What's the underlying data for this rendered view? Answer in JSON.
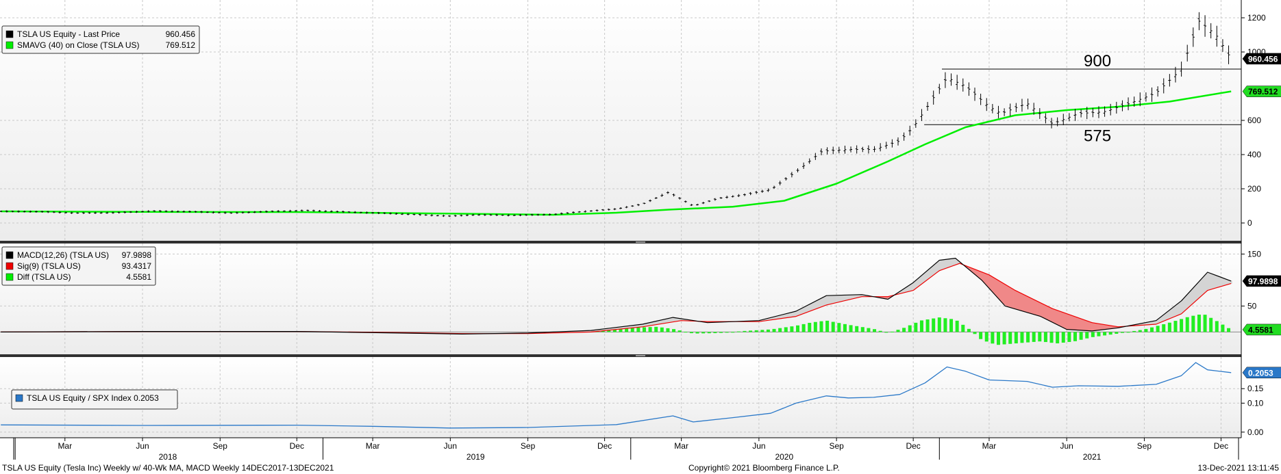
{
  "chart_data": [
    {
      "panel": "price",
      "type": "line",
      "ylim": [
        -80,
        1280
      ],
      "yticks": [
        0,
        200,
        400,
        600,
        1000,
        1200
      ],
      "legend": [
        {
          "label": "TSLA US Equity - Last Price",
          "value": "960.456",
          "color": "#000000"
        },
        {
          "label": "SMAVG (40)  on Close (TSLA US)",
          "value": "769.512",
          "color": "#00ee00"
        }
      ],
      "last_value_tags": [
        {
          "text": "960.456",
          "value": 960.456,
          "bg": "#000000",
          "fg": "#ffffff"
        },
        {
          "text": "769.512",
          "value": 769.512,
          "bg": "#22dd22",
          "fg": "#000000"
        }
      ],
      "annotations": [
        {
          "text": "900",
          "level": 900,
          "x_start": "2021-01-04"
        },
        {
          "text": "575",
          "level": 575,
          "x_start": "2020-12-14"
        }
      ],
      "series": [
        {
          "name": "TSLA US Equity - Last Price",
          "color": "#000000",
          "points": [
            [
              "2017-12-15",
              68
            ],
            [
              "2018-02-01",
              66
            ],
            [
              "2018-03-15",
              58
            ],
            [
              "2018-05-01",
              60
            ],
            [
              "2018-06-15",
              70
            ],
            [
              "2018-08-01",
              66
            ],
            [
              "2018-09-15",
              58
            ],
            [
              "2018-11-01",
              68
            ],
            [
              "2018-12-15",
              73
            ],
            [
              "2019-02-01",
              64
            ],
            [
              "2019-03-15",
              57
            ],
            [
              "2019-05-01",
              47
            ],
            [
              "2019-06-01",
              40
            ],
            [
              "2019-07-01",
              48
            ],
            [
              "2019-08-15",
              45
            ],
            [
              "2019-10-01",
              50
            ],
            [
              "2019-11-01",
              65
            ],
            [
              "2019-12-15",
              82
            ],
            [
              "2020-01-15",
              110
            ],
            [
              "2020-02-15",
              180
            ],
            [
              "2020-03-15",
              100
            ],
            [
              "2020-04-15",
              145
            ],
            [
              "2020-05-15",
              165
            ],
            [
              "2020-06-15",
              195
            ],
            [
              "2020-07-15",
              300
            ],
            [
              "2020-08-15",
              420
            ],
            [
              "2020-09-15",
              430
            ],
            [
              "2020-10-15",
              430
            ],
            [
              "2020-11-15",
              480
            ],
            [
              "2020-12-01",
              560
            ],
            [
              "2020-12-15",
              660
            ],
            [
              "2021-01-10",
              850
            ],
            [
              "2021-02-01",
              800
            ],
            [
              "2021-03-01",
              680
            ],
            [
              "2021-03-15",
              640
            ],
            [
              "2021-04-15",
              700
            ],
            [
              "2021-05-15",
              580
            ],
            [
              "2021-06-15",
              640
            ],
            [
              "2021-07-15",
              650
            ],
            [
              "2021-08-15",
              700
            ],
            [
              "2021-09-15",
              760
            ],
            [
              "2021-10-15",
              900
            ],
            [
              "2021-11-05",
              1180
            ],
            [
              "2021-11-25",
              1100
            ],
            [
              "2021-12-13",
              960
            ]
          ]
        },
        {
          "name": "SMAVG (40)  on Close (TSLA US)",
          "color": "#00ee00",
          "points": [
            [
              "2017-12-15",
              68
            ],
            [
              "2018-06-01",
              65
            ],
            [
              "2018-12-01",
              64
            ],
            [
              "2019-06-01",
              55
            ],
            [
              "2019-10-01",
              48
            ],
            [
              "2019-12-15",
              60
            ],
            [
              "2020-02-15",
              78
            ],
            [
              "2020-05-01",
              95
            ],
            [
              "2020-07-01",
              130
            ],
            [
              "2020-09-01",
              230
            ],
            [
              "2020-11-01",
              360
            ],
            [
              "2020-12-15",
              460
            ],
            [
              "2021-02-01",
              560
            ],
            [
              "2021-04-01",
              630
            ],
            [
              "2021-06-01",
              660
            ],
            [
              "2021-08-01",
              680
            ],
            [
              "2021-10-01",
              710
            ],
            [
              "2021-12-13",
              769.512
            ]
          ]
        }
      ]
    },
    {
      "panel": "macd",
      "type": "line",
      "ylim": [
        -35,
        165
      ],
      "yticks": [
        50,
        150
      ],
      "legend": [
        {
          "label": "MACD(12,26) (TSLA US)",
          "value": "97.9898",
          "color": "#000000"
        },
        {
          "label": "Sig(9) (TSLA US)",
          "value": "93.4317",
          "color": "#ee0000"
        },
        {
          "label": "Diff (TSLA US)",
          "value": "4.5581",
          "color": "#00ee00"
        }
      ],
      "last_value_tags": [
        {
          "text": "97.9898",
          "value": 97.9898,
          "bg": "#000000",
          "fg": "#ffffff"
        },
        {
          "text": "4.5581",
          "value": 4.5581,
          "bg": "#22dd22",
          "fg": "#000000"
        }
      ],
      "series": [
        {
          "name": "MACD(12,26) (TSLA US)",
          "color": "#000000",
          "points": [
            [
              "2017-12-15",
              0
            ],
            [
              "2018-06-01",
              1
            ],
            [
              "2018-12-01",
              1
            ],
            [
              "2019-04-01",
              -2
            ],
            [
              "2019-06-15",
              -4
            ],
            [
              "2019-09-01",
              -2
            ],
            [
              "2019-11-15",
              3
            ],
            [
              "2020-01-15",
              15
            ],
            [
              "2020-02-20",
              28
            ],
            [
              "2020-04-01",
              18
            ],
            [
              "2020-06-01",
              22
            ],
            [
              "2020-07-15",
              40
            ],
            [
              "2020-08-20",
              70
            ],
            [
              "2020-10-01",
              72
            ],
            [
              "2020-11-01",
              63
            ],
            [
              "2020-12-01",
              95
            ],
            [
              "2021-01-01",
              138
            ],
            [
              "2021-01-20",
              142
            ],
            [
              "2021-02-20",
              100
            ],
            [
              "2021-03-20",
              50
            ],
            [
              "2021-05-01",
              30
            ],
            [
              "2021-06-01",
              5
            ],
            [
              "2021-07-01",
              2
            ],
            [
              "2021-08-01",
              8
            ],
            [
              "2021-09-15",
              22
            ],
            [
              "2021-10-15",
              60
            ],
            [
              "2021-11-15",
              115
            ],
            [
              "2021-12-13",
              97.9898
            ]
          ]
        },
        {
          "name": "Sig(9) (TSLA US)",
          "color": "#ee0000",
          "points": [
            [
              "2017-12-15",
              0
            ],
            [
              "2018-06-01",
              1
            ],
            [
              "2018-12-01",
              1
            ],
            [
              "2019-04-01",
              -1
            ],
            [
              "2019-06-15",
              -3
            ],
            [
              "2019-09-01",
              -3
            ],
            [
              "2019-11-15",
              0
            ],
            [
              "2020-01-15",
              10
            ],
            [
              "2020-03-01",
              22
            ],
            [
              "2020-04-01",
              20
            ],
            [
              "2020-06-01",
              20
            ],
            [
              "2020-07-15",
              30
            ],
            [
              "2020-08-20",
              52
            ],
            [
              "2020-10-01",
              68
            ],
            [
              "2020-11-01",
              68
            ],
            [
              "2020-12-01",
              80
            ],
            [
              "2021-01-01",
              118
            ],
            [
              "2021-01-25",
              132
            ],
            [
              "2021-03-01",
              110
            ],
            [
              "2021-04-01",
              80
            ],
            [
              "2021-05-15",
              45
            ],
            [
              "2021-07-01",
              18
            ],
            [
              "2021-08-01",
              10
            ],
            [
              "2021-09-15",
              15
            ],
            [
              "2021-10-15",
              35
            ],
            [
              "2021-11-15",
              80
            ],
            [
              "2021-12-13",
              93.4317
            ]
          ]
        }
      ],
      "diff_bars": {
        "name": "Diff (TSLA US)",
        "color": "#22ee22",
        "points": [
          [
            "2019-11-15",
            3
          ],
          [
            "2019-12-15",
            6
          ],
          [
            "2020-01-15",
            9
          ],
          [
            "2020-02-01",
            10
          ],
          [
            "2020-02-20",
            6
          ],
          [
            "2020-03-15",
            -3
          ],
          [
            "2020-04-15",
            -2
          ],
          [
            "2020-05-15",
            2
          ],
          [
            "2020-06-15",
            5
          ],
          [
            "2020-07-15",
            12
          ],
          [
            "2020-08-01",
            18
          ],
          [
            "2020-08-20",
            22
          ],
          [
            "2020-09-15",
            14
          ],
          [
            "2020-10-15",
            6
          ],
          [
            "2020-11-01",
            -2
          ],
          [
            "2020-11-20",
            8
          ],
          [
            "2020-12-10",
            22
          ],
          [
            "2021-01-01",
            28
          ],
          [
            "2021-01-20",
            24
          ],
          [
            "2021-02-05",
            6
          ],
          [
            "2021-02-20",
            -15
          ],
          [
            "2021-03-10",
            -25
          ],
          [
            "2021-04-01",
            -22
          ],
          [
            "2021-05-01",
            -18
          ],
          [
            "2021-05-20",
            -22
          ],
          [
            "2021-06-10",
            -18
          ],
          [
            "2021-07-01",
            -10
          ],
          [
            "2021-08-01",
            -3
          ],
          [
            "2021-09-01",
            5
          ],
          [
            "2021-10-01",
            18
          ],
          [
            "2021-10-25",
            30
          ],
          [
            "2021-11-10",
            35
          ],
          [
            "2021-11-25",
            22
          ],
          [
            "2021-12-13",
            4.5581
          ]
        ]
      }
    },
    {
      "panel": "ratio",
      "type": "line",
      "ylim": [
        -0.01,
        0.245
      ],
      "yticks": [
        0.0,
        0.1,
        0.15
      ],
      "ytick_labels": [
        "0.00",
        "0.10",
        "0.15"
      ],
      "legend": [
        {
          "label": "TSLA US Equity / SPX Index 0.2053",
          "color": "#2a78c8"
        }
      ],
      "last_value_tags": [
        {
          "text": "0.2053",
          "value": 0.2053,
          "bg": "#2a78c8",
          "fg": "#ffffff"
        }
      ],
      "series": [
        {
          "name": "TSLA US Equity / SPX Index",
          "color": "#2a78c8",
          "points": [
            [
              "2017-12-15",
              0.025
            ],
            [
              "2018-06-01",
              0.023
            ],
            [
              "2018-12-01",
              0.024
            ],
            [
              "2019-03-01",
              0.02
            ],
            [
              "2019-06-01",
              0.014
            ],
            [
              "2019-09-01",
              0.016
            ],
            [
              "2019-12-15",
              0.026
            ],
            [
              "2020-02-20",
              0.056
            ],
            [
              "2020-03-15",
              0.035
            ],
            [
              "2020-05-01",
              0.05
            ],
            [
              "2020-06-15",
              0.065
            ],
            [
              "2020-07-15",
              0.1
            ],
            [
              "2020-08-20",
              0.125
            ],
            [
              "2020-09-15",
              0.118
            ],
            [
              "2020-10-15",
              0.12
            ],
            [
              "2020-11-15",
              0.13
            ],
            [
              "2020-12-15",
              0.17
            ],
            [
              "2021-01-10",
              0.225
            ],
            [
              "2021-02-01",
              0.21
            ],
            [
              "2021-03-01",
              0.18
            ],
            [
              "2021-04-15",
              0.175
            ],
            [
              "2021-05-15",
              0.155
            ],
            [
              "2021-06-15",
              0.16
            ],
            [
              "2021-08-01",
              0.158
            ],
            [
              "2021-09-15",
              0.165
            ],
            [
              "2021-10-15",
              0.195
            ],
            [
              "2021-11-01",
              0.24
            ],
            [
              "2021-11-15",
              0.215
            ],
            [
              "2021-12-13",
              0.2053
            ]
          ]
        }
      ]
    }
  ],
  "x_axis": {
    "months": [
      {
        "label": "Mar",
        "date": "2018-03-01"
      },
      {
        "label": "Jun",
        "date": "2018-06-01"
      },
      {
        "label": "Sep",
        "date": "2018-09-01"
      },
      {
        "label": "Dec",
        "date": "2018-12-01"
      },
      {
        "label": "Mar",
        "date": "2019-03-01"
      },
      {
        "label": "Jun",
        "date": "2019-06-01"
      },
      {
        "label": "Sep",
        "date": "2019-09-01"
      },
      {
        "label": "Dec",
        "date": "2019-12-01"
      },
      {
        "label": "Mar",
        "date": "2020-03-01"
      },
      {
        "label": "Jun",
        "date": "2020-06-01"
      },
      {
        "label": "Sep",
        "date": "2020-09-01"
      },
      {
        "label": "Dec",
        "date": "2020-12-01"
      },
      {
        "label": "Mar",
        "date": "2021-03-01"
      },
      {
        "label": "Jun",
        "date": "2021-06-01"
      },
      {
        "label": "Sep",
        "date": "2021-09-01"
      },
      {
        "label": "Dec",
        "date": "2021-12-01"
      }
    ],
    "years": [
      {
        "label": "2018",
        "date": "2018-07-01"
      },
      {
        "label": "2019",
        "date": "2019-07-01"
      },
      {
        "label": "2020",
        "date": "2020-07-01"
      },
      {
        "label": "2021",
        "date": "2021-07-01"
      }
    ],
    "year_starts": [
      "2018-01-01",
      "2019-01-01",
      "2020-01-01",
      "2021-01-01"
    ],
    "range": [
      "2017-12-14",
      "2021-12-25"
    ]
  },
  "footer": {
    "left": "TSLA US Equity (Tesla Inc) Weekly w/ 40-Wk MA, MACD  Weekly 14DEC2017-13DEC2021",
    "center": "Copyright© 2021 Bloomberg Finance L.P.",
    "right": "13-Dec-2021 13:11:45"
  }
}
